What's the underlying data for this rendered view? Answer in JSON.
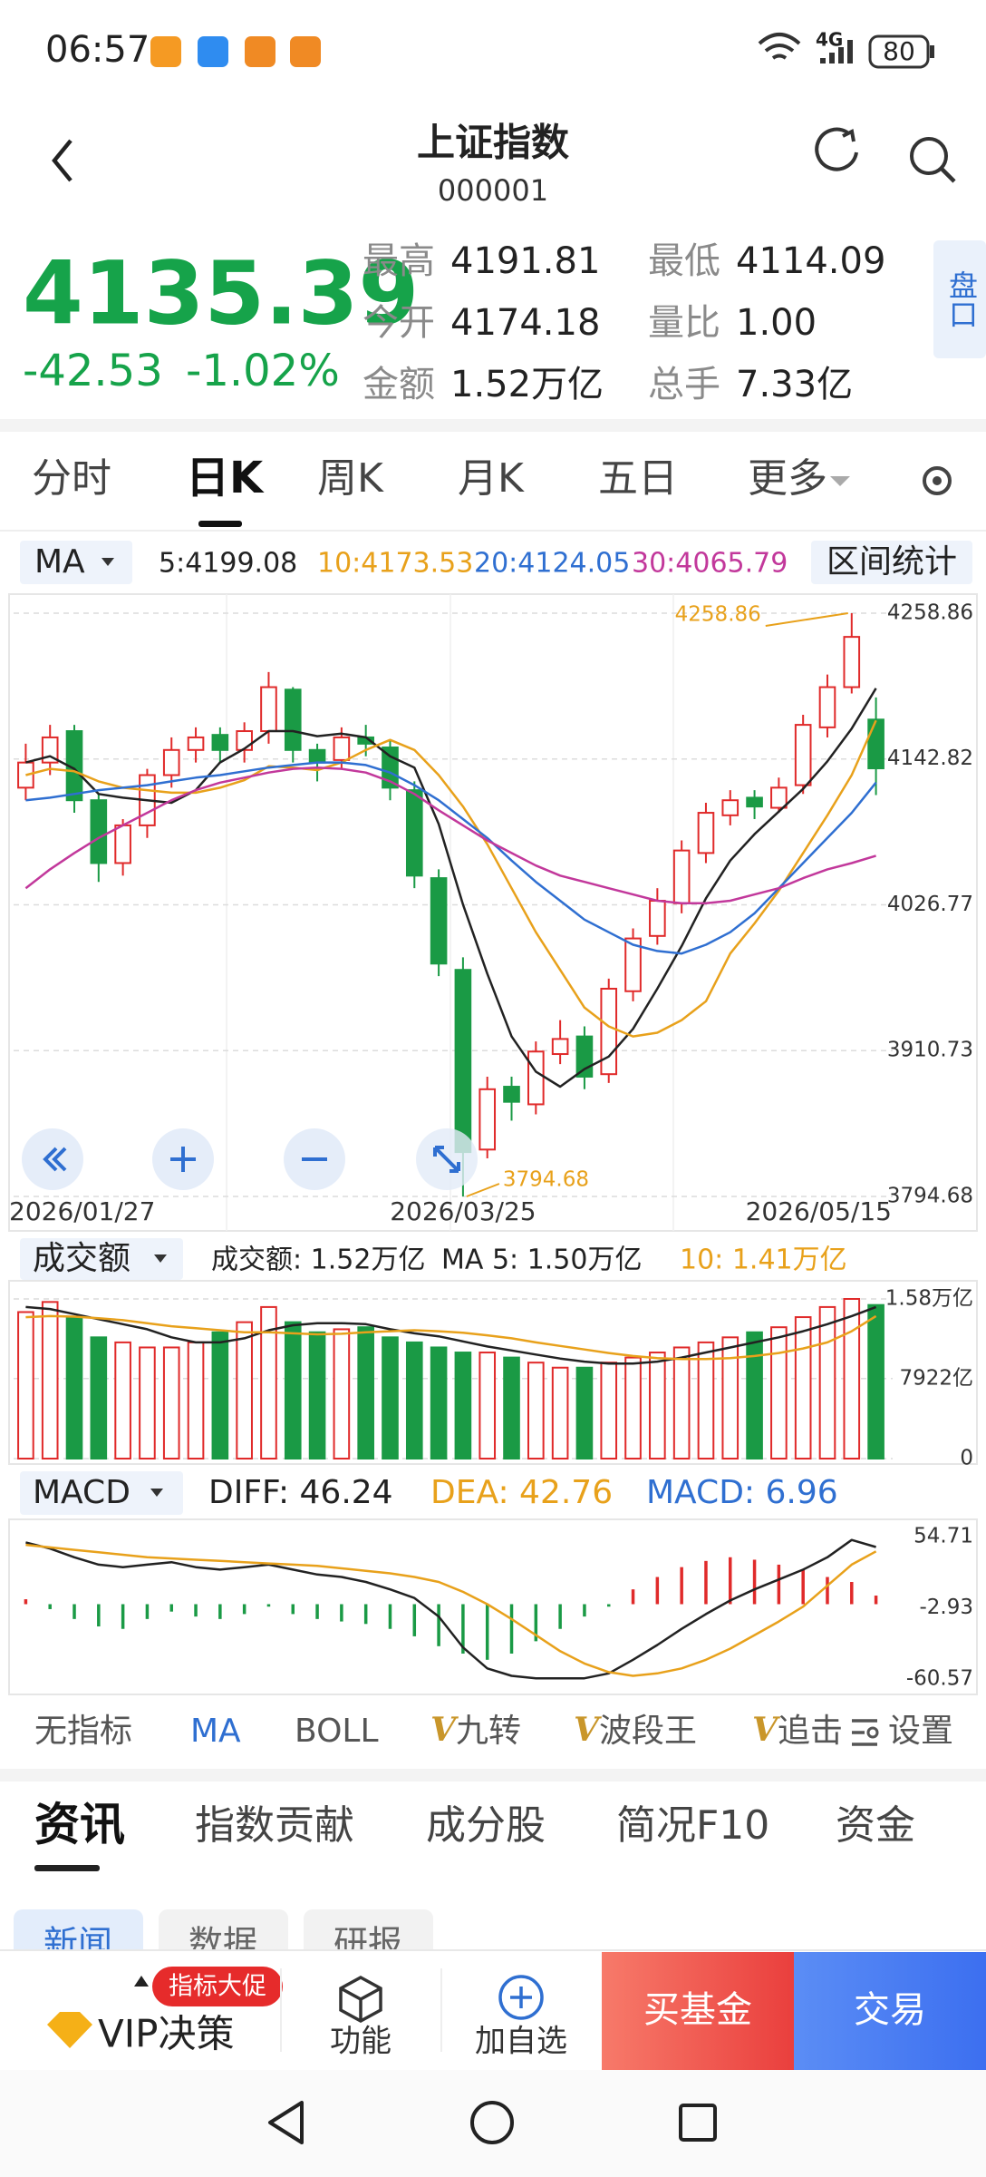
{
  "status_bar": {
    "time": "06:57",
    "network": "4G",
    "battery": "80"
  },
  "header": {
    "title": "上证指数",
    "code": "000001"
  },
  "quote": {
    "price": "4135.39",
    "change": "-42.53",
    "change_pct": "-1.02%",
    "stats": [
      {
        "label": "最高",
        "value": "4191.81"
      },
      {
        "label": "最低",
        "value": "4114.09"
      },
      {
        "label": "今开",
        "value": "4174.18"
      },
      {
        "label": "量比",
        "value": "1.00"
      },
      {
        "label": "金额",
        "value": "1.52万亿"
      },
      {
        "label": "总手",
        "value": "7.33亿"
      }
    ],
    "side_tab": "盘口"
  },
  "period_tabs": [
    "分时",
    "日K",
    "周K",
    "月K",
    "五日",
    "更多"
  ],
  "range_stat": "区间统计",
  "chart_data": [
    {
      "type": "candlestick",
      "selector": "MA",
      "categories": [
        "2026/01/27",
        null,
        null,
        null,
        null,
        null,
        null,
        null,
        null,
        null,
        null,
        null,
        null,
        null,
        null,
        null,
        null,
        null,
        "2026/03/25",
        null,
        null,
        null,
        null,
        null,
        null,
        null,
        null,
        null,
        null,
        null,
        null,
        null,
        null,
        null,
        null,
        "2026/05/15"
      ],
      "open": [
        4120,
        4140,
        4165,
        4110,
        4060,
        4090,
        4130,
        4150,
        4162,
        4150,
        4165,
        4198,
        4150,
        4142,
        4160,
        4152,
        4118,
        4048,
        3975,
        3832,
        3882,
        3868,
        3908,
        3922,
        3892,
        3958,
        4002,
        4028,
        4068,
        4098,
        4112,
        4104,
        4122,
        4168,
        4200,
        4174.18
      ],
      "high": [
        4155,
        4170,
        4170,
        4115,
        4095,
        4135,
        4160,
        4168,
        4168,
        4172,
        4212,
        4200,
        4155,
        4168,
        4170,
        4158,
        4125,
        4055,
        3985,
        3890,
        3890,
        3918,
        3935,
        3930,
        3968,
        4008,
        4040,
        4078,
        4108,
        4118,
        4118,
        4128,
        4178,
        4210,
        4258.86,
        4191.81
      ],
      "low": [
        4110,
        4130,
        4100,
        4045,
        4050,
        4080,
        4120,
        4140,
        4140,
        4140,
        4155,
        4140,
        4125,
        4135,
        4145,
        4110,
        4040,
        3970,
        3794.68,
        3825,
        3855,
        3860,
        3900,
        3880,
        3885,
        3950,
        3995,
        4020,
        4060,
        4090,
        4095,
        4100,
        4115,
        4160,
        4195,
        4114.09
      ],
      "close": [
        4140,
        4160,
        4110,
        4060,
        4090,
        4130,
        4150,
        4160,
        4150,
        4165,
        4200,
        4150,
        4140,
        4160,
        4155,
        4120,
        4050,
        3980,
        3830,
        3880,
        3870,
        3910,
        3920,
        3890,
        3960,
        4000,
        4030,
        4070,
        4100,
        4110,
        4105,
        4120,
        4170,
        4200,
        4240,
        4135.39
      ],
      "series": [
        {
          "label": "5:4199.08",
          "color": "#222222",
          "values": [
            4140,
            4145,
            4135,
            4115,
            4112,
            4110,
            4108,
            4118,
            4140,
            4151,
            4165,
            4165,
            4161,
            4163,
            4160,
            4145,
            4136,
            4091,
            4027,
            3972,
            3922,
            3894,
            3882,
            3896,
            3906,
            3928,
            3960,
            3994,
            4032,
            4062,
            4083,
            4101,
            4119,
            4141,
            4167,
            4199.08
          ]
        },
        {
          "label": "10:4173.53",
          "color": "#e8a11b",
          "values": [
            4130,
            4135,
            4133,
            4125,
            4120,
            4118,
            4116,
            4116,
            4120,
            4126,
            4137,
            4136,
            4134,
            4140,
            4150,
            4158,
            4150,
            4130,
            4105,
            4075,
            4040,
            4005,
            3975,
            3945,
            3930,
            3922,
            3925,
            3935,
            3950,
            3988,
            4012,
            4038,
            4068,
            4098,
            4130,
            4173.53
          ]
        },
        {
          "label": "20:4124.05",
          "color": "#2f6fd1",
          "values": [
            4110,
            4112,
            4115,
            4118,
            4120,
            4122,
            4125,
            4128,
            4130,
            4133,
            4136,
            4138,
            4140,
            4140,
            4138,
            4132,
            4122,
            4110,
            4095,
            4080,
            4062,
            4045,
            4030,
            4015,
            4005,
            3995,
            3990,
            3988,
            3995,
            4005,
            4020,
            4040,
            4060,
            4080,
            4100,
            4124.05
          ]
        },
        {
          "label": "30:4065.79",
          "color": "#c2389b",
          "values": [
            4040,
            4055,
            4068,
            4080,
            4090,
            4100,
            4110,
            4118,
            4124,
            4128,
            4132,
            4135,
            4136,
            4135,
            4132,
            4125,
            4115,
            4102,
            4090,
            4078,
            4068,
            4058,
            4050,
            4045,
            4040,
            4035,
            4030,
            4028,
            4028,
            4030,
            4035,
            4040,
            4048,
            4055,
            4060,
            4065.79
          ]
        }
      ],
      "up_color": "#e02a2a",
      "down_color": "#1a9a45",
      "annotation_color": "#e8a11b",
      "ylim": [
        3794.68,
        4258.86
      ],
      "yticks": [
        4258.86,
        4142.82,
        4026.77,
        3910.73,
        3794.68
      ],
      "grid": true
    },
    {
      "type": "volume",
      "selector": "成交额",
      "values_label": "成交额: 1.52万亿",
      "values": [
        14500,
        15500,
        14000,
        12000,
        11500,
        11000,
        11000,
        11500,
        12500,
        13500,
        15000,
        13500,
        12500,
        12800,
        13000,
        12000,
        11500,
        11000,
        10500,
        10500,
        10000,
        9500,
        9000,
        9000,
        9500,
        10000,
        10500,
        11000,
        11500,
        12000,
        12500,
        13000,
        14000,
        15000,
        15800,
        15200
      ],
      "series": [
        {
          "label": "MA 5: 1.50万亿",
          "color": "#222222",
          "values": [
            15000,
            14800,
            14300,
            13800,
            13300,
            12800,
            12000,
            11500,
            11500,
            11900,
            12700,
            13200,
            13400,
            13400,
            13300,
            12800,
            12400,
            12100,
            11600,
            11100,
            10700,
            10300,
            9900,
            9600,
            9400,
            9400,
            9600,
            10000,
            10500,
            11000,
            11500,
            12000,
            12600,
            13300,
            14100,
            15000
          ]
        },
        {
          "label": "10: 1.41万亿",
          "color": "#e8a11b",
          "values": [
            14000,
            14100,
            14050,
            13900,
            13700,
            13400,
            13100,
            12900,
            12700,
            12500,
            12500,
            12400,
            12300,
            12350,
            12500,
            12600,
            12700,
            12600,
            12450,
            12200,
            11900,
            11500,
            11150,
            10800,
            10450,
            10150,
            9950,
            9850,
            9850,
            9950,
            10150,
            10450,
            10900,
            11500,
            12600,
            14100
          ]
        }
      ],
      "ylim": [
        0,
        15800
      ],
      "yticks": [
        {
          "value": 15800,
          "label": "1.58万亿"
        },
        {
          "value": 7922,
          "label": "7922亿"
        },
        0
      ],
      "grid": true
    },
    {
      "type": "macd",
      "selector": "MACD",
      "values_label": "MACD: 6.96",
      "values": [
        4,
        -4,
        -12,
        -18,
        -20,
        -12,
        -6,
        -10,
        -12,
        -8,
        -2,
        -8,
        -12,
        -14,
        -16,
        -20,
        -26,
        -34,
        -40,
        -45,
        -40,
        -30,
        -20,
        -10,
        -2,
        12,
        22,
        30,
        35,
        38,
        36,
        32,
        28,
        22,
        18,
        6.96
      ],
      "series": [
        {
          "label": "DIFF: 46.24",
          "color": "#222222",
          "values": [
            50,
            45,
            38,
            32,
            30,
            32,
            34,
            30,
            28,
            30,
            32,
            28,
            24,
            22,
            18,
            12,
            5,
            -10,
            -35,
            -52,
            -58,
            -60,
            -60,
            -60,
            -56,
            -45,
            -33,
            -20,
            -8,
            3,
            12,
            20,
            28,
            38,
            52,
            46.24
          ]
        },
        {
          "label": "DEA: 42.76",
          "color": "#e8a11b",
          "values": [
            48,
            46,
            44,
            42,
            40,
            38,
            37,
            36,
            35,
            34,
            33,
            32,
            31,
            29,
            27,
            25,
            22,
            18,
            10,
            0,
            -12,
            -25,
            -38,
            -48,
            -55,
            -58,
            -56,
            -52,
            -45,
            -36,
            -25,
            -14,
            -2,
            15,
            32,
            42.76
          ]
        }
      ],
      "up_color": "#e02a2a",
      "down_color": "#1a9a45",
      "ylim": [
        -60.57,
        54.71
      ],
      "yticks": [
        54.71,
        -2.93,
        -60.57
      ],
      "grid": false
    }
  ],
  "indicator_tabs": [
    {
      "label": "无指标"
    },
    {
      "label": "MA"
    },
    {
      "label": "BOLL"
    },
    {
      "badge": "V",
      "label": "九转"
    },
    {
      "badge": "V",
      "label": "波段王"
    },
    {
      "badge": "V",
      "label": "追击"
    }
  ],
  "indicator_settings": "设置",
  "info_tabs": [
    "资讯",
    "指数贡献",
    "成分股",
    "简况F10",
    "资金"
  ],
  "sub_tabs": [
    "新闻",
    "数据",
    "研报"
  ],
  "bottom_bar": {
    "badge": "指标大促",
    "vip": "VIP决策",
    "function": "功能",
    "add_watch": "加自选",
    "buy_fund": "买基金",
    "trade": "交易"
  }
}
